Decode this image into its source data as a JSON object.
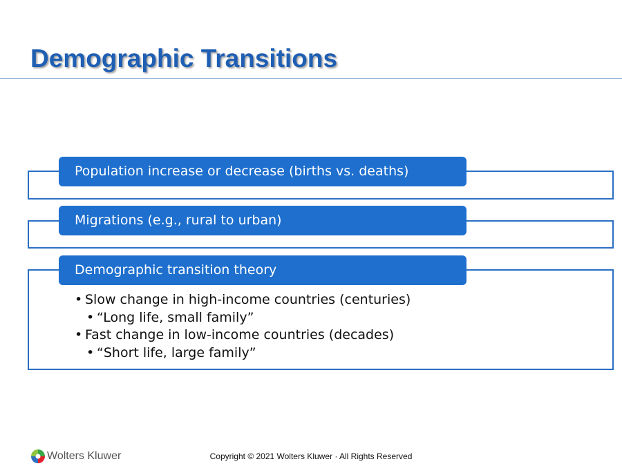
{
  "slide": {
    "title": "Demographic Transitions",
    "boxes": [
      {
        "label": "Population increase or decrease (births vs. deaths)"
      },
      {
        "label": "Migrations (e.g., rural to urban)"
      },
      {
        "label": "Demographic transition theory",
        "bullets": [
          {
            "level": 1,
            "text": "Slow change in high-income countries (centuries)"
          },
          {
            "level": 2,
            "text": "“Long life, small family”"
          },
          {
            "level": 1,
            "text": "Fast change in low-income countries (decades)"
          },
          {
            "level": 2,
            "text": "“Short life, large family”"
          }
        ]
      }
    ]
  },
  "footer": {
    "logo_text": "Wolters Kluwer",
    "logo_icon": "wolters-kluwer-logo-icon",
    "copyright": "Copyright © 2021 Wolters Kluwer · All Rights Reserved"
  },
  "colors": {
    "title": "#1f5fb3",
    "pill": "#1e6fce",
    "frame_border": "#2a6fc4"
  }
}
